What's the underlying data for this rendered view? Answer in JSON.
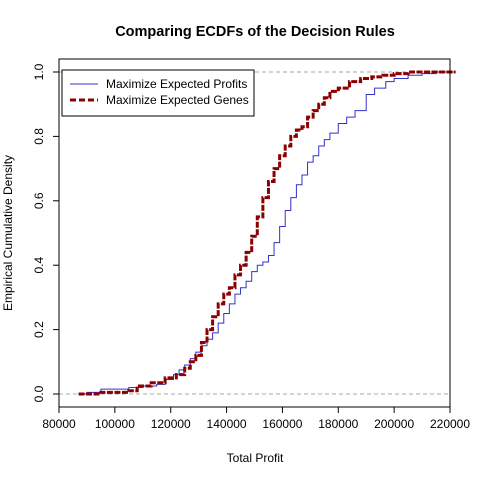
{
  "chart_data": {
    "type": "line",
    "title": "Comparing ECDFs of the Decision Rules",
    "xlabel": "Total Profit",
    "ylabel": "Empirical Cumulative Density",
    "xlim": [
      80000,
      220000
    ],
    "ylim": [
      0,
      1
    ],
    "x_ticks": [
      80000,
      100000,
      120000,
      140000,
      160000,
      180000,
      200000,
      220000
    ],
    "x_tick_labels": [
      "80000",
      "100000",
      "120000",
      "140000",
      "160000",
      "180000",
      "200000",
      "220000"
    ],
    "y_ticks": [
      0.0,
      0.2,
      0.4,
      0.6,
      0.8,
      1.0
    ],
    "y_tick_labels": [
      "0.0",
      "0.2",
      "0.4",
      "0.6",
      "0.8",
      "1.0"
    ],
    "reference_lines": [
      0,
      1
    ],
    "legend": {
      "position": "top-left",
      "entries": [
        {
          "label": "Maximize Expected Profits",
          "color": "#3333cc",
          "style": "solid"
        },
        {
          "label": "Maximize Expected Genes",
          "color": "#8b0000",
          "style": "dashed"
        }
      ]
    },
    "series": [
      {
        "name": "Maximize Expected Profits",
        "color": "#3333cc",
        "style": "step",
        "x": [
          87000,
          90000,
          95000,
          100000,
          105000,
          110000,
          115000,
          118000,
          121000,
          123000,
          125000,
          127000,
          129000,
          131000,
          133000,
          135000,
          137000,
          139000,
          141000,
          143000,
          145000,
          147000,
          149000,
          151000,
          153000,
          155000,
          157000,
          159000,
          161000,
          163000,
          165000,
          167000,
          169000,
          171000,
          173000,
          175000,
          177000,
          180000,
          183000,
          186000,
          190000,
          193000,
          197000,
          200000,
          205000,
          210000,
          215000,
          222000
        ],
        "y": [
          0.0,
          0.005,
          0.015,
          0.015,
          0.02,
          0.025,
          0.03,
          0.045,
          0.06,
          0.075,
          0.09,
          0.11,
          0.13,
          0.15,
          0.17,
          0.19,
          0.22,
          0.25,
          0.28,
          0.31,
          0.33,
          0.35,
          0.38,
          0.4,
          0.41,
          0.43,
          0.47,
          0.52,
          0.57,
          0.61,
          0.65,
          0.68,
          0.72,
          0.74,
          0.77,
          0.79,
          0.81,
          0.84,
          0.86,
          0.88,
          0.93,
          0.95,
          0.97,
          0.98,
          0.99,
          0.995,
          1.0,
          1.0
        ]
      },
      {
        "name": "Maximize Expected Genes",
        "color": "#8b0000",
        "style": "step",
        "x": [
          87000,
          95000,
          100000,
          105000,
          108000,
          113000,
          118000,
          122000,
          125000,
          127000,
          129000,
          131000,
          133000,
          135000,
          137000,
          139000,
          141000,
          143000,
          145000,
          147000,
          149000,
          151000,
          153000,
          155000,
          157000,
          159000,
          161000,
          163000,
          165000,
          167000,
          169000,
          171000,
          173000,
          175000,
          177000,
          180000,
          184000,
          188000,
          192000,
          196000,
          200000,
          205000,
          210000,
          222000
        ],
        "y": [
          0.0,
          0.005,
          0.005,
          0.01,
          0.025,
          0.035,
          0.05,
          0.06,
          0.08,
          0.1,
          0.12,
          0.16,
          0.2,
          0.24,
          0.28,
          0.31,
          0.33,
          0.37,
          0.4,
          0.44,
          0.49,
          0.55,
          0.61,
          0.66,
          0.7,
          0.74,
          0.77,
          0.8,
          0.82,
          0.83,
          0.86,
          0.88,
          0.9,
          0.92,
          0.94,
          0.95,
          0.97,
          0.98,
          0.985,
          0.99,
          0.995,
          1.0,
          1.0,
          1.0
        ]
      }
    ]
  }
}
